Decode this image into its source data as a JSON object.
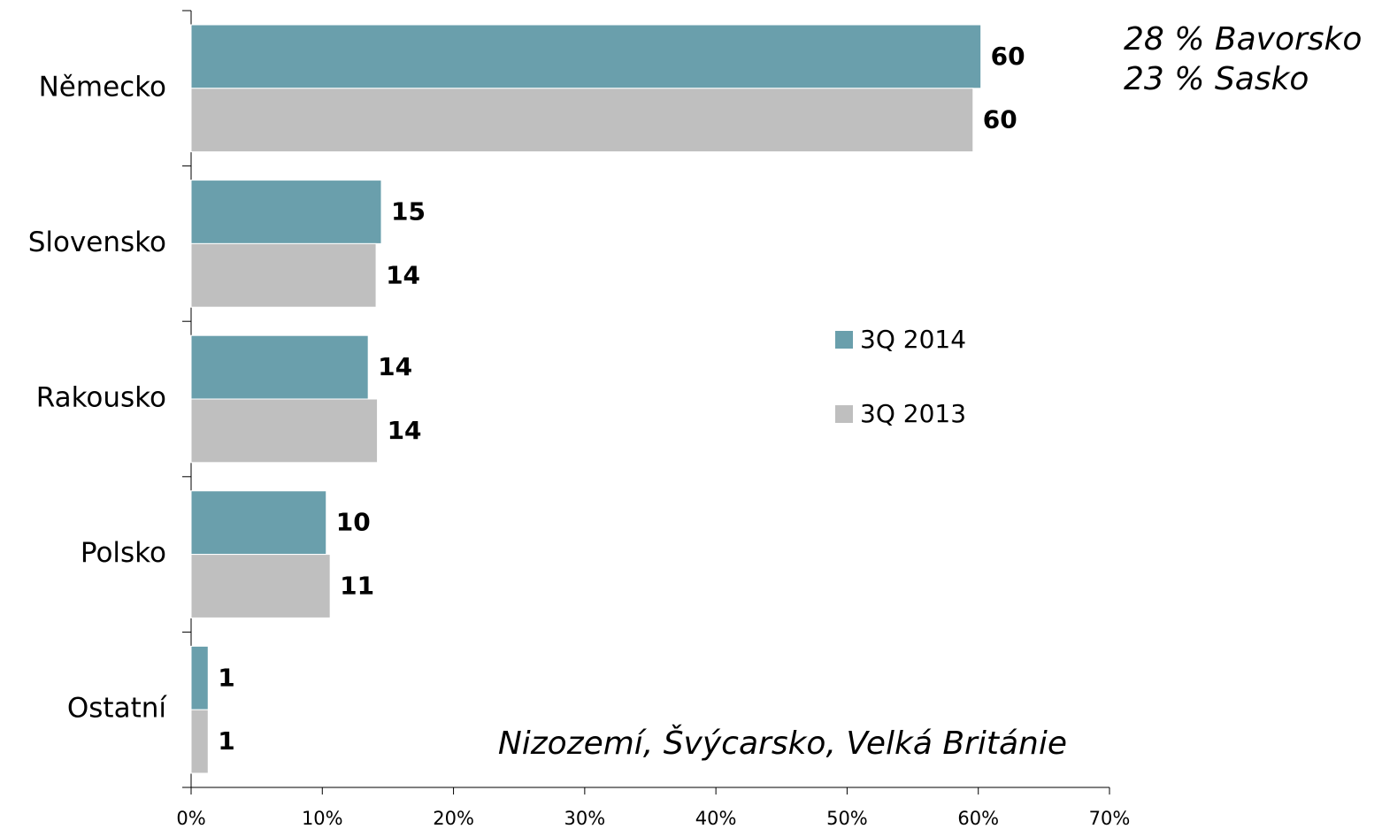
{
  "chart_data": {
    "type": "bar",
    "orientation": "horizontal",
    "categories": [
      "Německo",
      "Slovensko",
      "Rakousko",
      "Polsko",
      "Ostatní"
    ],
    "series": [
      {
        "name": "3Q 2014",
        "color": "#6a9fac",
        "values": [
          60.2,
          14.5,
          13.5,
          10.3,
          1.3
        ],
        "value_labels": [
          "60",
          "15",
          "14",
          "10",
          "1"
        ]
      },
      {
        "name": "3Q 2013",
        "color": "#bfbfbf",
        "values": [
          59.6,
          14.1,
          14.2,
          10.6,
          1.3
        ],
        "value_labels": [
          "60",
          "14",
          "14",
          "11",
          "1"
        ]
      }
    ],
    "xlim": [
      0,
      70
    ],
    "xticks": [
      {
        "value": 0,
        "label": "0%"
      },
      {
        "value": 10,
        "label": "10%"
      },
      {
        "value": 20,
        "label": "20%"
      },
      {
        "value": 30,
        "label": "30%"
      },
      {
        "value": 40,
        "label": "40%"
      },
      {
        "value": 50,
        "label": "50%"
      },
      {
        "value": 60,
        "label": "60%"
      },
      {
        "value": 70,
        "label": "70%"
      }
    ],
    "annotations": [
      "28 % Bavorsko",
      "23 % Sasko",
      "Nizozemí, Švýcarsko, Velká Británie"
    ],
    "legend": "right"
  }
}
